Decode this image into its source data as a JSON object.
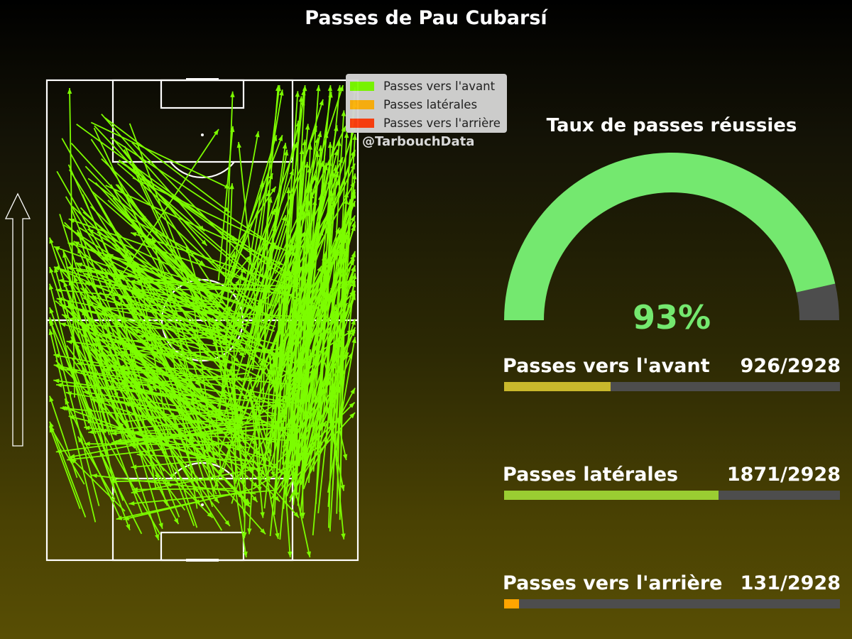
{
  "title": "Passes de Pau Cubarsí",
  "legend": [
    {
      "label": "Passes vers l'avant",
      "color": "#7cfc00"
    },
    {
      "label": "Passes latérales",
      "color": "#ffb310"
    },
    {
      "label": "Passes vers l'arrière",
      "color": "#ff4010"
    }
  ],
  "credit": "@TarbouchData",
  "gauge": {
    "title": "Taux de passes réussies",
    "value_text": "93%",
    "value": 0.93,
    "fill_color": "#74e86f",
    "rest_color": "#4d4d4d"
  },
  "stats": [
    {
      "label": "Passes vers l'avant",
      "count_text": "926/2928",
      "count": 926,
      "total": 2928,
      "color": "#c9b82c"
    },
    {
      "label": "Passes latérales",
      "count_text": "1871/2928",
      "count": 1871,
      "total": 2928,
      "color": "#9acd32"
    },
    {
      "label": "Passes vers l'arrière",
      "count_text": "131/2928",
      "count": 131,
      "total": 2928,
      "color": "#ffa500"
    }
  ],
  "chart_data": {
    "type": "pass-map",
    "attack_direction": "up",
    "passes_color": "#7cfc00"
  }
}
